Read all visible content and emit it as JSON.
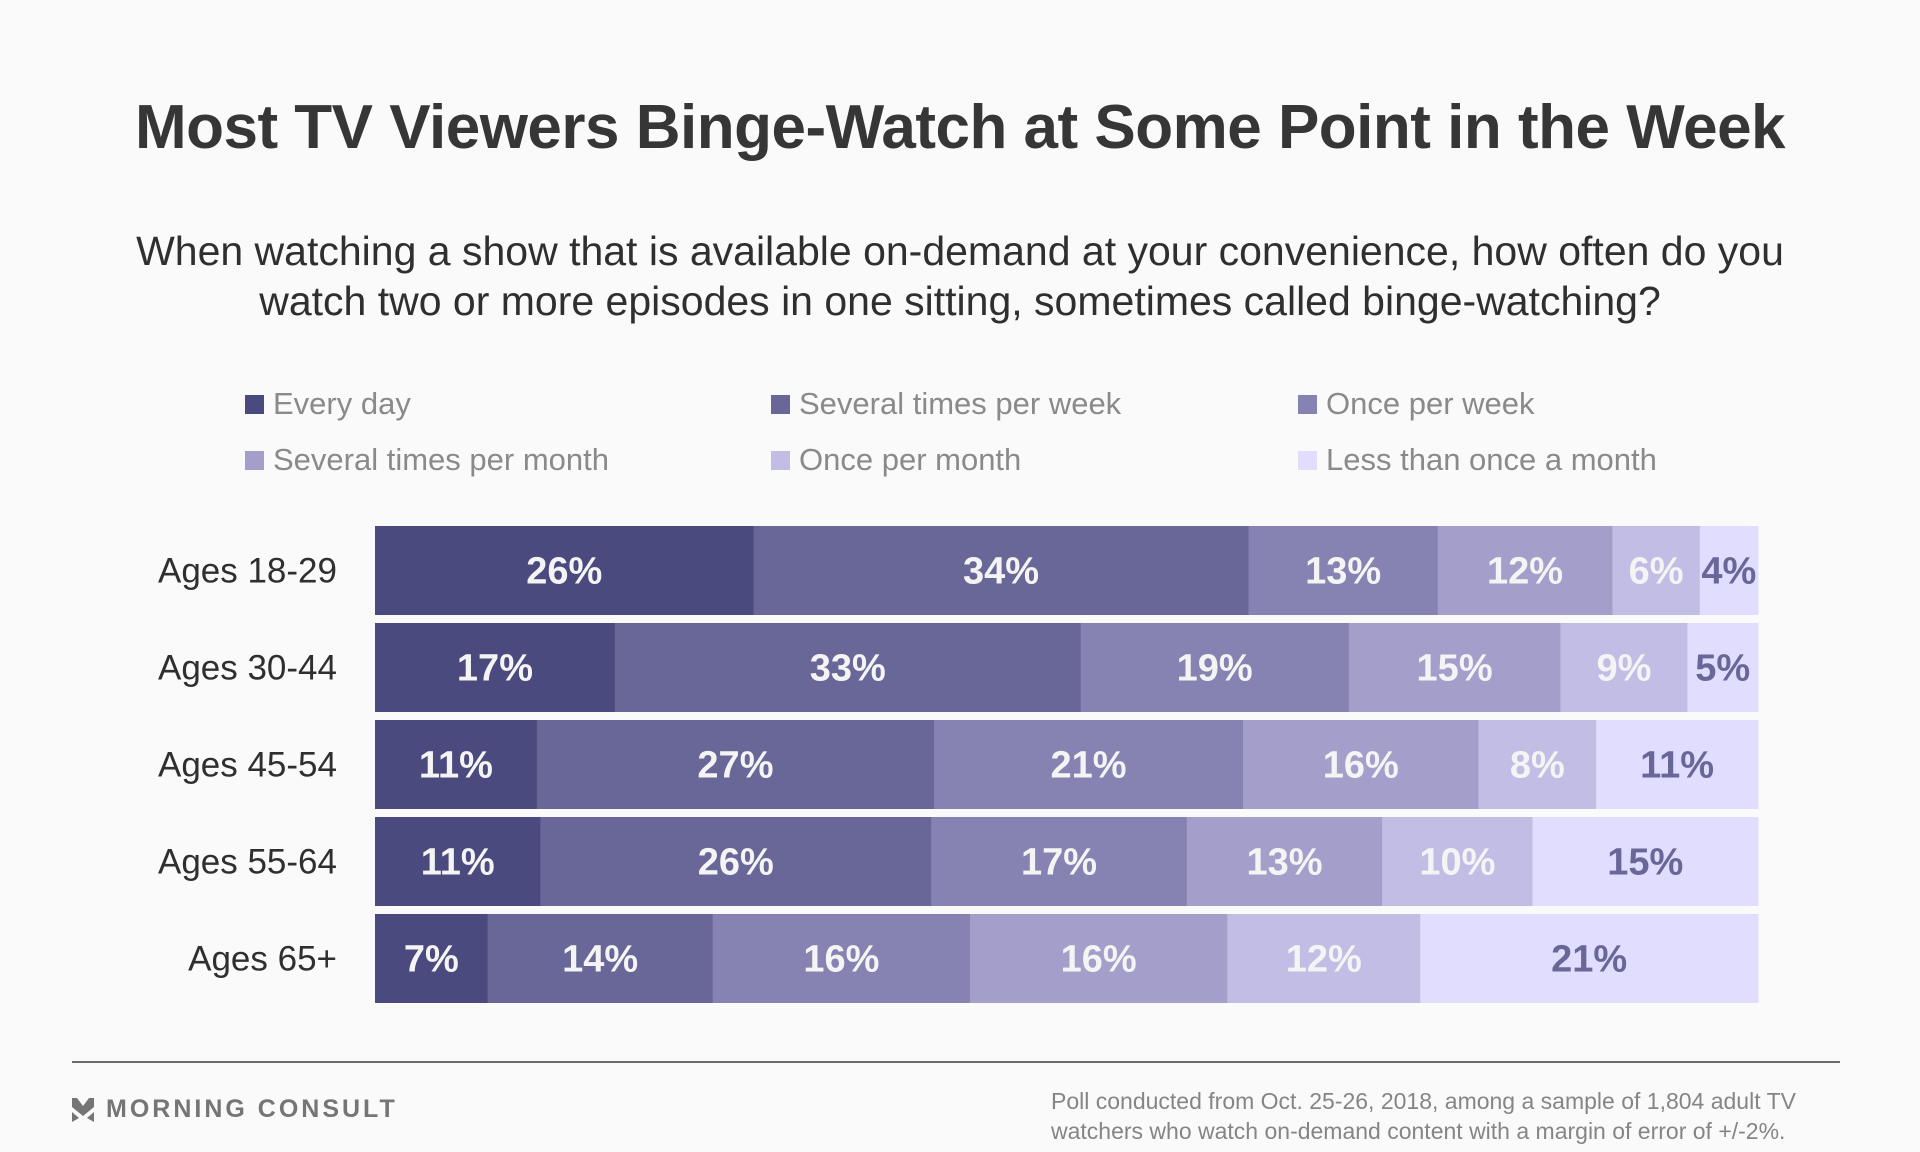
{
  "header": {
    "title": "Most TV Viewers Binge-Watch at Some Point in the Week",
    "subtitle": "When watching a show that is available on-demand at your convenience, how often do you watch two or more episodes in one sitting, sometimes called binge-watching?"
  },
  "legend": [
    {
      "label": "Every day",
      "color": "#4b4a7e"
    },
    {
      "label": "Several times per week",
      "color": "#696698"
    },
    {
      "label": "Once per week",
      "color": "#8683b2"
    },
    {
      "label": "Several times per month",
      "color": "#a49fca"
    },
    {
      "label": "Once per month",
      "color": "#c2bde4"
    },
    {
      "label": "Less than once a month",
      "color": "#e0ddfe"
    }
  ],
  "chart_data": {
    "type": "bar",
    "orientation": "horizontal",
    "stacked": true,
    "title": "Most TV Viewers Binge-Watch at Some Point in the Week",
    "subtitle": "When watching a show that is available on-demand at your convenience, how often do you watch two or more episodes in one sitting, sometimes called binge-watching?",
    "categories": [
      "Ages 18-29",
      "Ages 30-44",
      "Ages 45-54",
      "Ages 55-64",
      "Ages 65+"
    ],
    "series": [
      {
        "name": "Every day",
        "values": [
          26,
          17,
          11,
          11,
          7
        ]
      },
      {
        "name": "Several times per week",
        "values": [
          34,
          33,
          27,
          26,
          14
        ]
      },
      {
        "name": "Once per week",
        "values": [
          13,
          19,
          21,
          17,
          16
        ]
      },
      {
        "name": "Several times per month",
        "values": [
          12,
          15,
          16,
          13,
          16
        ]
      },
      {
        "name": "Once per month",
        "values": [
          6,
          9,
          8,
          10,
          12
        ]
      },
      {
        "name": "Less than once a month",
        "values": [
          4,
          5,
          11,
          15,
          21
        ]
      }
    ],
    "value_suffix": "%",
    "label_colors": {
      "light": "#f4f4f4",
      "dark": "#696698"
    },
    "dark_label_series": [
      "Less than once a month"
    ],
    "legend_position": "top",
    "grid": false,
    "xlabel": "",
    "ylabel": ""
  },
  "footer": {
    "brand": "MORNING CONSULT",
    "note": "Poll conducted from Oct. 25-26, 2018, among a sample of 1,804 adult TV watchers who watch on-demand content with a margin of error of +/-2%."
  }
}
